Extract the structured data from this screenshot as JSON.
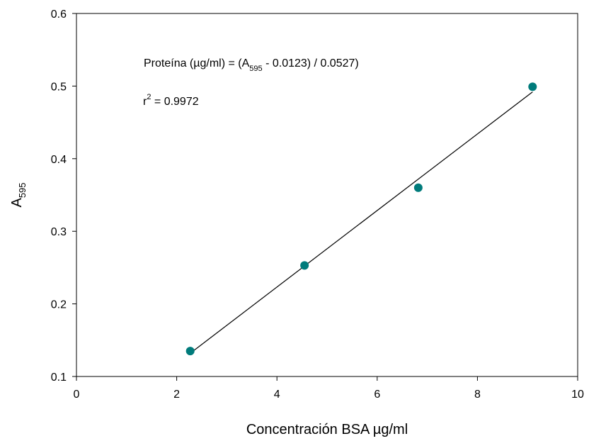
{
  "chart_data": {
    "type": "scatter",
    "xlabel": "Concentración BSA µg/ml",
    "ylabel": {
      "base": "A",
      "sub": "595"
    },
    "xlim": [
      0,
      10
    ],
    "ylim": [
      0.1,
      0.6
    ],
    "x_ticks": [
      "0",
      "2",
      "4",
      "6",
      "8",
      "10"
    ],
    "y_ticks": [
      "0.1",
      "0.2",
      "0.3",
      "0.4",
      "0.5",
      "0.6"
    ],
    "grid": false,
    "marker_color": "#007b7b",
    "line_color": "#000000",
    "points": [
      {
        "x": 2.27,
        "y": 0.135
      },
      {
        "x": 4.55,
        "y": 0.253
      },
      {
        "x": 6.82,
        "y": 0.36
      },
      {
        "x": 9.1,
        "y": 0.499
      }
    ],
    "fit_line": {
      "x": [
        2.27,
        9.1
      ],
      "y": [
        0.132,
        0.492
      ]
    },
    "equation": {
      "prefix": "Proteína (µg/ml) = (A",
      "sub": "595",
      "suffix": " - 0.0123) / 0.0527)"
    },
    "r_squared": {
      "base": "r",
      "sup": "2",
      "value": " = 0.9972"
    }
  }
}
